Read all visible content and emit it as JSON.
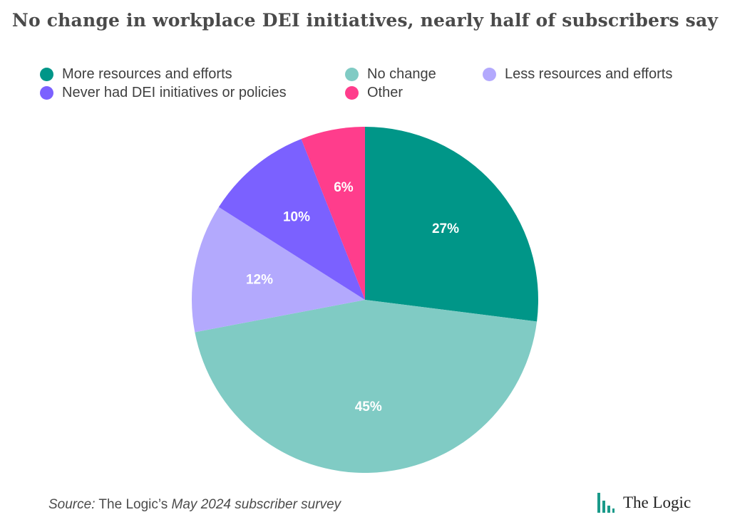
{
  "header": {
    "title": "No change in workplace DEI initiatives, nearly half of subscribers say"
  },
  "chart_data": {
    "type": "pie",
    "title": "No change in workplace DEI initiatives, nearly half of subscribers say",
    "legend_placement": "top",
    "slices": [
      {
        "label": "More resources and efforts",
        "value": 27,
        "display": "27%",
        "color": "#009688"
      },
      {
        "label": "No change",
        "value": 45,
        "display": "45%",
        "color": "#80cbc4"
      },
      {
        "label": "Less resources and efforts",
        "value": 12,
        "display": "12%",
        "color": "#b3a9fd"
      },
      {
        "label": "Never had DEI initiatives or policies",
        "value": 10,
        "display": "10%",
        "color": "#7b61ff"
      },
      {
        "label": "Other",
        "value": 6,
        "display": "6%",
        "color": "#ff3d8c"
      }
    ]
  },
  "footer": {
    "source_prefix": "Source:",
    "source_italic_1": "The Logic’s",
    "source_plain": " ",
    "source_italic_2": "May 2024 subscriber survey",
    "source_middle": "The Logic’s ",
    "brand_name": "The Logic",
    "brand_color": "#1a9a8a"
  }
}
